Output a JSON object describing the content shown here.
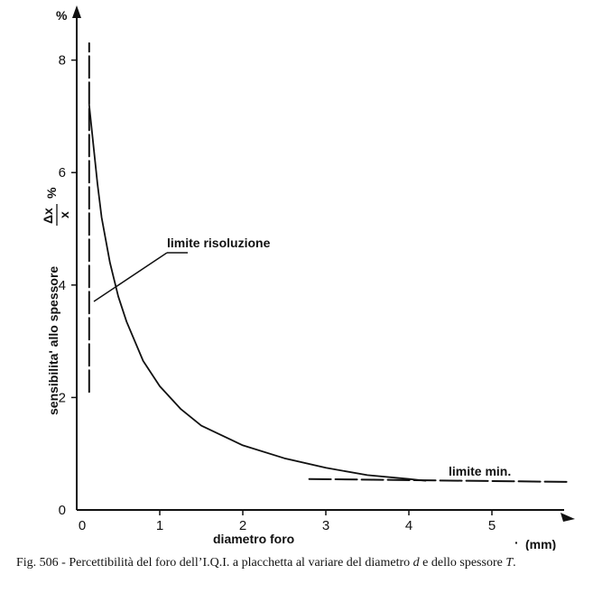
{
  "chart_data": {
    "type": "line",
    "title": "",
    "xlabel": "diametro foro",
    "x_unit_label": "(mm)",
    "ylabel": "sensibilita' allo spessore",
    "y_fraction_numerator": "Δx",
    "y_fraction_denominator": "x",
    "y_unit_label": "%",
    "xlim": [
      0,
      5.8
    ],
    "ylim": [
      0,
      8.5
    ],
    "x_ticks": [
      "0",
      "1",
      "2",
      "3",
      "4",
      "5"
    ],
    "y_ticks": [
      "0",
      "2",
      "4",
      "6",
      "8"
    ],
    "grid": false,
    "series": [
      {
        "style": "solid",
        "x": [
          0.15,
          0.2,
          0.25,
          0.3,
          0.4,
          0.5,
          0.6,
          0.8,
          1.0,
          1.25,
          1.5,
          2.0,
          2.5,
          3.0,
          3.5,
          4.0,
          4.2
        ],
        "y": [
          7.2,
          6.5,
          5.8,
          5.2,
          4.4,
          3.8,
          3.35,
          2.65,
          2.2,
          1.8,
          1.5,
          1.15,
          0.92,
          0.75,
          0.62,
          0.55,
          0.52
        ]
      },
      {
        "style": "dashed",
        "x": [
          0.15,
          0.15
        ],
        "y": [
          2.1,
          8.3
        ]
      },
      {
        "style": "dashed",
        "x": [
          2.8,
          5.9
        ],
        "y": [
          0.55,
          0.5
        ]
      }
    ],
    "annotations": [
      {
        "text": "limite risoluzione"
      },
      {
        "text": "limite min."
      }
    ]
  },
  "caption": {
    "prefix": "Fig. 506 - Percettibilità del foro dell’I.Q.I. a placchetta al variare del diametro ",
    "var_d": "d",
    "middle": " e dello spessore ",
    "var_T": "T",
    "suffix": "."
  }
}
